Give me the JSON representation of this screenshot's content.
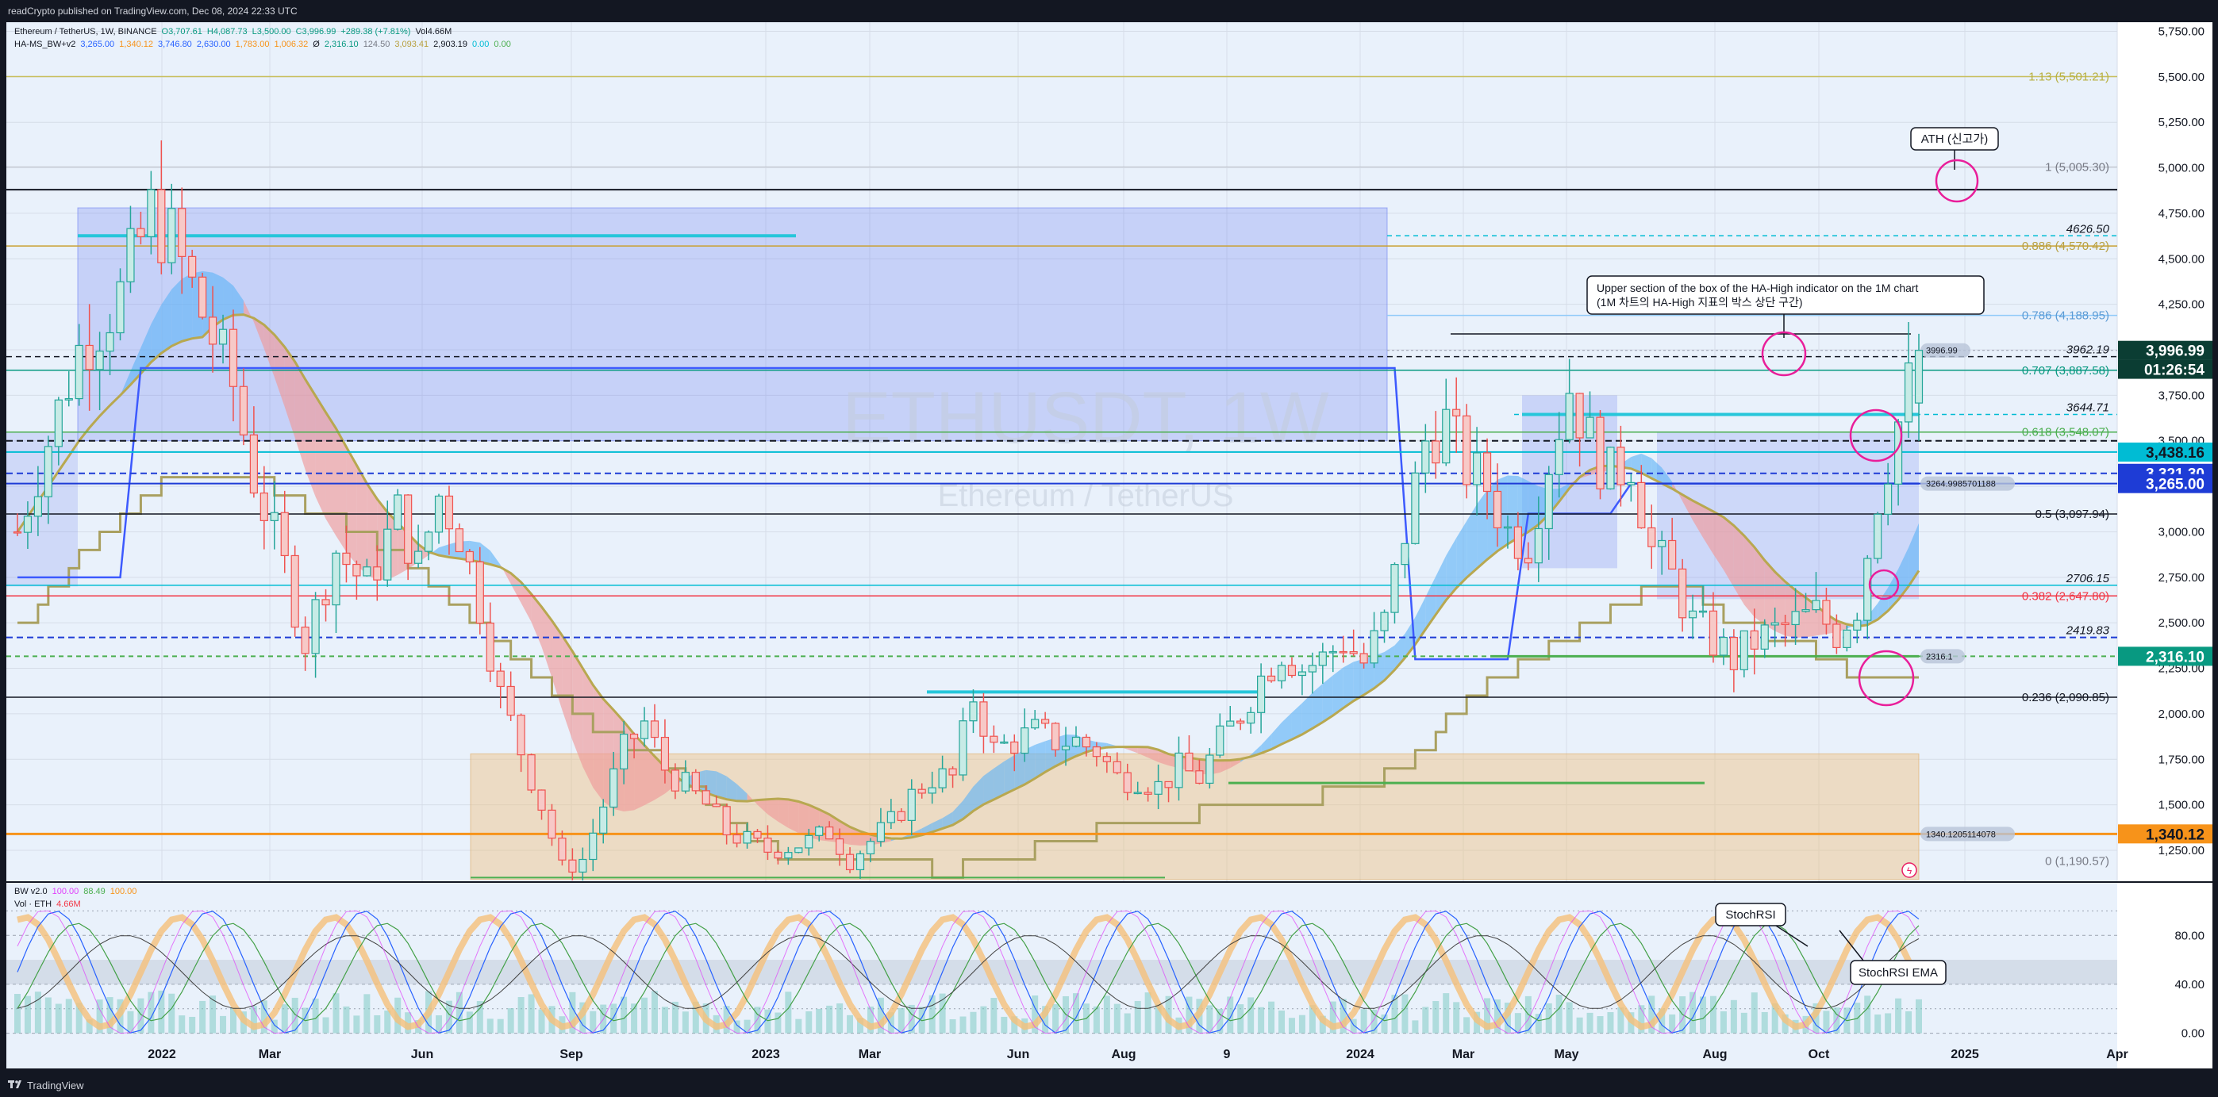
{
  "header": {
    "published": "readCrypto published on TradingView.com, Dec 08, 2024 22:33 UTC"
  },
  "footer": {
    "brand": "TradingView"
  },
  "legend": {
    "line1": [
      {
        "text": "Ethereum / TetherUS, 1W, BINANCE",
        "color": "#131722"
      },
      {
        "text": "O3,707.61",
        "color": "#089981"
      },
      {
        "text": "H4,087.73",
        "color": "#089981"
      },
      {
        "text": "L3,500.00",
        "color": "#089981"
      },
      {
        "text": "C3,996.99",
        "color": "#089981"
      },
      {
        "text": "+289.38 (+7.81%)",
        "color": "#089981"
      },
      {
        "text": "Vol4.66M",
        "color": "#131722"
      }
    ],
    "line2": [
      {
        "text": "HA-MS_BW+v2",
        "color": "#131722"
      },
      {
        "text": "3,265.00",
        "color": "#2962ff"
      },
      {
        "text": "1,340.12",
        "color": "#f7931a"
      },
      {
        "text": "3,746.80",
        "color": "#2962ff"
      },
      {
        "text": "2,630.00",
        "color": "#2962ff"
      },
      {
        "text": "1,783.00",
        "color": "#f7931a"
      },
      {
        "text": "1,006.32",
        "color": "#f7931a"
      },
      {
        "text": "Ø",
        "color": "#131722"
      },
      {
        "text": "2,316.10",
        "color": "#089981"
      },
      {
        "text": "124.50",
        "color": "#787b86"
      },
      {
        "text": "3,093.41",
        "color": "#b8a040"
      },
      {
        "text": "2,903.19",
        "color": "#131722"
      },
      {
        "text": "0.00",
        "color": "#00bcd4"
      },
      {
        "text": "0.00",
        "color": "#4caf50"
      }
    ],
    "line3": [
      {
        "text": "BW v2.0",
        "color": "#131722"
      },
      {
        "text": "100.00",
        "color": "#e040fb"
      },
      {
        "text": "88.49",
        "color": "#4caf50"
      },
      {
        "text": "100.00",
        "color": "#f7931a"
      }
    ],
    "line4": [
      {
        "text": "Vol · ETH",
        "color": "#131722"
      },
      {
        "text": "4.66M",
        "color": "#f23645"
      }
    ]
  },
  "watermark": {
    "symbol": "ETHUSDT, 1W",
    "name": "Ethereum / TetherUS"
  },
  "annotations": {
    "ath": "ATH (신고가)",
    "upper_box_line1": "Upper section of the box of the HA-High indicator on the 1M chart",
    "upper_box_line2": "(1M 차트의 HA-High 지표의 박스 상단 구간)",
    "stochrsi": "StochRSI",
    "stochrsi_ema": "StochRSI EMA"
  },
  "fib_labels": [
    {
      "text": "1.13 (5,501.21)",
      "price": 5501.21,
      "color": "#b8b040"
    },
    {
      "text": "1 (5,005.30)",
      "price": 5005.3,
      "color": "#787b86"
    },
    {
      "text": "0.886 (4,570.42)",
      "price": 4570.42,
      "color": "#b8a040"
    },
    {
      "text": "0.786 (4,188.95)",
      "price": 4188.95,
      "color": "#5b9bd5"
    },
    {
      "text": "0.707 (3,887.58)",
      "price": 3887.58,
      "color": "#089981"
    },
    {
      "text": "0.618 (3,548.07)",
      "price": 3548.07,
      "color": "#4caf50"
    },
    {
      "text": "0.5 (3,097.94)",
      "price": 3097.94,
      "color": "#131722"
    },
    {
      "text": "0.382 (2,647.80)",
      "price": 2647.8,
      "color": "#f23645"
    },
    {
      "text": "0.236 (2,090.85)",
      "price": 2090.85,
      "color": "#131722"
    },
    {
      "text": "0 (1,190.57)",
      "price": 1190.57,
      "color": "#787b86"
    }
  ],
  "level_labels": [
    {
      "text": "4626.50",
      "price": 4626.5
    },
    {
      "text": "3962.19",
      "price": 3962.19
    },
    {
      "text": "3644.71",
      "price": 3644.71
    },
    {
      "text": "2706.15",
      "price": 2706.15
    },
    {
      "text": "2419.83",
      "price": 2419.83
    }
  ],
  "inline_tags": [
    {
      "text": "3996.99",
      "price": 3996.99
    },
    {
      "text": "3264.9985701188",
      "price": 3264.9985701188
    },
    {
      "text": "2316.1",
      "price": 2316.1
    },
    {
      "text": "1340.1205114078",
      "price": 1340.1205114078
    }
  ],
  "price_tags": [
    {
      "text": "3,996.99",
      "price": 3996.99,
      "bg": "#0b3d33",
      "color": "#ffffff"
    },
    {
      "text": "01:26:54",
      "price": 3893,
      "bg": "#0b3d33",
      "color": "#ffffff"
    },
    {
      "text": "3,438.16",
      "price": 3438.16,
      "bg": "#00bcd4",
      "color": "#131722"
    },
    {
      "text": "3,321.30",
      "price": 3321.3,
      "bg": "#1e3cd6",
      "color": "#ffffff"
    },
    {
      "text": "3,265.00",
      "price": 3265.0,
      "bg": "#1e3cd6",
      "color": "#ffffff"
    },
    {
      "text": "2,316.10",
      "price": 2316.1,
      "bg": "#089981",
      "color": "#ffffff"
    },
    {
      "text": "1,340.12",
      "price": 1340.12,
      "bg": "#f7931a",
      "color": "#131722"
    }
  ],
  "colors": {
    "up": "#26a69a",
    "down": "#ef5350",
    "bg": "#e9f1fb",
    "grid": "#d6dde8"
  },
  "chart_data": {
    "type": "candlestick",
    "interval": "1W",
    "price_axis": {
      "ticks": [
        "5,750.00",
        "5,500.00",
        "5,250.00",
        "5,000.00",
        "4,750.00",
        "4,500.00",
        "4,250.00",
        "4,000.00",
        "3,750.00",
        "3,500.00",
        "3,250.00",
        "3,000.00",
        "2,750.00",
        "2,500.00",
        "2,250.00",
        "2,000.00",
        "1,750.00",
        "1,500.00",
        "1,250.00"
      ],
      "range": [
        1080,
        5800
      ]
    },
    "time_axis": [
      "2022",
      "Mar",
      "Jun",
      "Sep",
      "2023",
      "Mar",
      "Jun",
      "Aug",
      "9",
      "2024",
      "Mar",
      "May",
      "Aug",
      "Oct",
      "2025",
      "Apr"
    ],
    "oscillator_axis": {
      "ticks": [
        "80.00",
        "40.00",
        "0.00"
      ],
      "range": [
        -10,
        110
      ]
    },
    "price_anchors": [
      [
        0,
        3000
      ],
      [
        6,
        4000
      ],
      [
        10,
        4300
      ],
      [
        13,
        4750
      ],
      [
        15,
        4600
      ],
      [
        18,
        4200
      ],
      [
        21,
        3800
      ],
      [
        23,
        3300
      ],
      [
        26,
        2800
      ],
      [
        28,
        2400
      ],
      [
        31,
        2900
      ],
      [
        34,
        2700
      ],
      [
        37,
        3100
      ],
      [
        39,
        2800
      ],
      [
        41,
        3200
      ],
      [
        43,
        3000
      ],
      [
        45,
        2600
      ],
      [
        47,
        2100
      ],
      [
        49,
        1800
      ],
      [
        51,
        1500
      ],
      [
        53,
        1150
      ],
      [
        55,
        1200
      ],
      [
        57,
        1500
      ],
      [
        59,
        1800
      ],
      [
        61,
        1950
      ],
      [
        63,
        1700
      ],
      [
        65,
        1600
      ],
      [
        67,
        1500
      ],
      [
        69,
        1350
      ],
      [
        71,
        1300
      ],
      [
        73,
        1250
      ],
      [
        75,
        1270
      ],
      [
        77,
        1300
      ],
      [
        79,
        1350
      ],
      [
        81,
        1200
      ],
      [
        83,
        1300
      ],
      [
        85,
        1400
      ],
      [
        87,
        1550
      ],
      [
        89,
        1650
      ],
      [
        91,
        1650
      ],
      [
        93,
        2100
      ],
      [
        95,
        1800
      ],
      [
        97,
        1850
      ],
      [
        99,
        1900
      ],
      [
        101,
        1850
      ],
      [
        103,
        1850
      ],
      [
        105,
        1800
      ],
      [
        107,
        1650
      ],
      [
        109,
        1650
      ],
      [
        111,
        1600
      ],
      [
        113,
        1700
      ],
      [
        115,
        1650
      ],
      [
        117,
        1850
      ],
      [
        119,
        2000
      ],
      [
        121,
        2200
      ],
      [
        123,
        2350
      ],
      [
        125,
        2250
      ],
      [
        127,
        2300
      ],
      [
        129,
        2400
      ],
      [
        131,
        2280
      ],
      [
        133,
        2500
      ],
      [
        135,
        3000
      ],
      [
        137,
        3500
      ],
      [
        139,
        3600
      ],
      [
        141,
        3350
      ],
      [
        143,
        3250
      ],
      [
        145,
        3000
      ],
      [
        147,
        2950
      ],
      [
        149,
        3400
      ],
      [
        151,
        3800
      ],
      [
        153,
        3500
      ],
      [
        155,
        3300
      ],
      [
        157,
        3400
      ],
      [
        159,
        2900
      ],
      [
        161,
        2750
      ],
      [
        163,
        2500
      ],
      [
        165,
        2400
      ],
      [
        167,
        2300
      ],
      [
        169,
        2400
      ],
      [
        171,
        2450
      ],
      [
        173,
        2500
      ],
      [
        175,
        2550
      ],
      [
        177,
        2450
      ],
      [
        179,
        2600
      ],
      [
        181,
        3200
      ],
      [
        183,
        3600
      ],
      [
        185,
        3997
      ]
    ],
    "last": {
      "open": 3707.61,
      "high": 4087.73,
      "low": 3500.0,
      "close": 3996.99,
      "change": "+289.38 (+7.81%)",
      "volume": "4.66M"
    }
  }
}
